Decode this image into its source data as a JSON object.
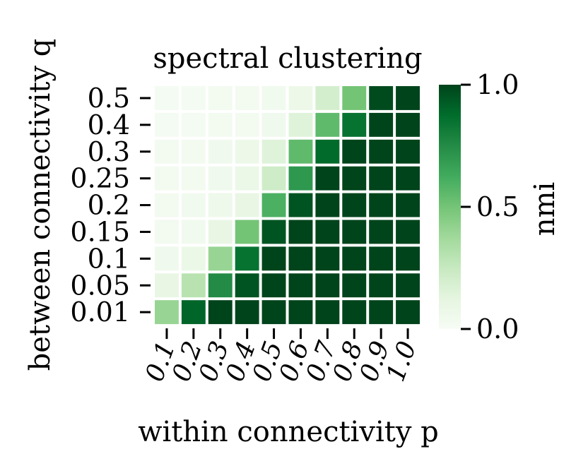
{
  "chart_data": {
    "type": "heatmap",
    "title": "spectral clustering",
    "xlabel": "within connectivity p",
    "ylabel": "between connectivity q",
    "x_categories": [
      "0.1",
      "0.2",
      "0.3",
      "0.4",
      "0.5",
      "0.6",
      "0.7",
      "0.8",
      "0.9",
      "1.0"
    ],
    "y_categories": [
      "0.5",
      "0.4",
      "0.3",
      "0.25",
      "0.2",
      "0.15",
      "0.1",
      "0.05",
      "0.01"
    ],
    "values": [
      [
        0.02,
        0.02,
        0.03,
        0.03,
        0.04,
        0.07,
        0.2,
        0.5,
        0.98,
        1.0
      ],
      [
        0.02,
        0.02,
        0.03,
        0.03,
        0.05,
        0.15,
        0.55,
        0.85,
        1.0,
        1.0
      ],
      [
        0.03,
        0.03,
        0.05,
        0.07,
        0.15,
        0.55,
        0.88,
        1.0,
        1.0,
        1.0
      ],
      [
        0.03,
        0.03,
        0.05,
        0.08,
        0.22,
        0.7,
        1.0,
        1.0,
        1.0,
        1.0
      ],
      [
        0.03,
        0.04,
        0.06,
        0.1,
        0.6,
        0.95,
        1.0,
        1.0,
        1.0,
        1.0
      ],
      [
        0.03,
        0.04,
        0.1,
        0.5,
        0.95,
        1.0,
        1.0,
        1.0,
        1.0,
        1.0
      ],
      [
        0.05,
        0.08,
        0.4,
        0.85,
        1.0,
        1.0,
        1.0,
        1.0,
        1.0,
        1.0
      ],
      [
        0.1,
        0.3,
        0.75,
        0.95,
        1.0,
        1.0,
        1.0,
        1.0,
        1.0,
        1.0
      ],
      [
        0.4,
        0.9,
        1.0,
        1.0,
        1.0,
        1.0,
        1.0,
        1.0,
        1.0,
        1.0
      ]
    ],
    "colorbar": {
      "label": "nmi",
      "range": [
        0,
        1
      ],
      "ticks": [
        "0.0",
        "0.5",
        "1.0"
      ],
      "colormap": [
        "#f7fcf5",
        "#e5f5e0",
        "#c7e9c0",
        "#a1d99b",
        "#74c476",
        "#41ab5d",
        "#238b45",
        "#006d2c",
        "#00441b"
      ]
    },
    "grid": false,
    "legend": "none"
  }
}
